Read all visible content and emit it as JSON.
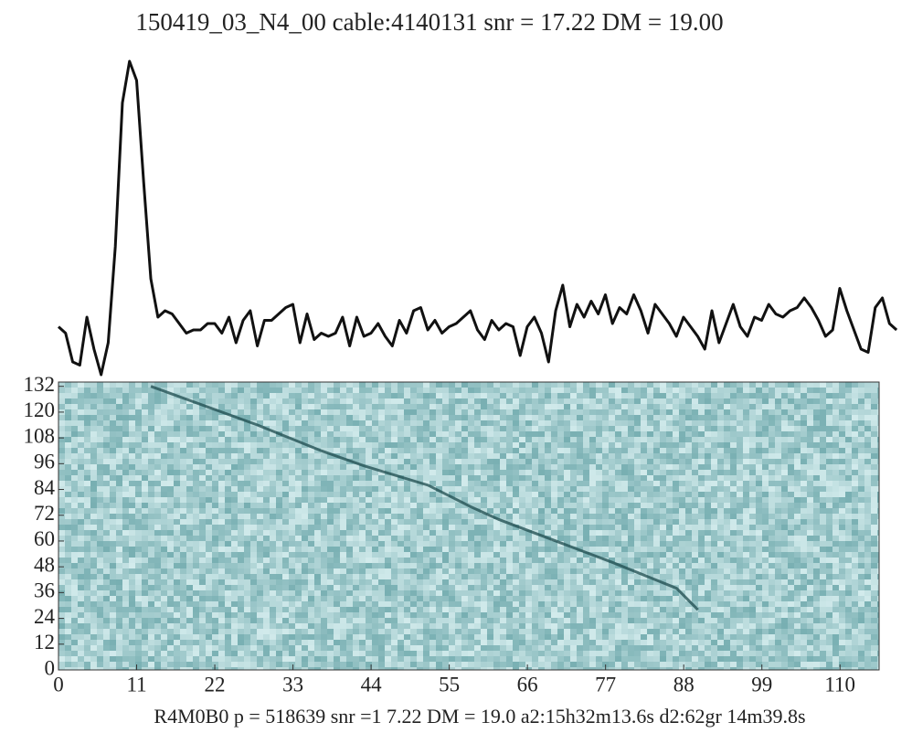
{
  "chart_data": [
    {
      "type": "line",
      "title": "150419_03_N4_00 cable:4140131 snr = 17.22 DM = 19.00",
      "color": "#111111",
      "xlim": [
        0,
        118.5
      ],
      "ylim": [
        0,
        100
      ],
      "x": [
        0,
        1,
        2,
        3,
        4,
        5,
        6,
        7,
        8,
        9,
        10,
        11,
        12,
        13,
        14,
        15,
        16,
        17,
        18,
        19,
        20,
        21,
        22,
        23,
        24,
        25,
        26,
        27,
        28,
        29,
        30,
        31,
        32,
        33,
        34,
        35,
        36,
        37,
        38,
        39,
        40,
        41,
        42,
        43,
        44,
        45,
        46,
        47,
        48,
        49,
        50,
        51,
        52,
        53,
        54,
        55,
        56,
        57,
        58,
        59,
        60,
        61,
        62,
        63,
        64,
        65,
        66,
        67,
        68,
        69,
        70,
        71,
        72,
        73,
        74,
        75,
        76,
        77,
        78,
        79,
        80,
        81,
        82,
        83,
        84,
        85,
        86,
        87,
        88,
        89,
        90,
        91,
        92,
        93,
        94,
        95,
        96,
        97,
        98,
        99,
        100,
        101,
        102,
        103,
        104,
        105,
        106,
        107,
        108,
        109,
        110,
        111,
        112,
        113,
        114,
        115,
        116,
        117,
        118
      ],
      "values": [
        15,
        13,
        4,
        3,
        18,
        8,
        0,
        10,
        40,
        85,
        98,
        92,
        60,
        30,
        18,
        20,
        19,
        16,
        13,
        14,
        14,
        16,
        16,
        13,
        18,
        10,
        17,
        20,
        9,
        17,
        17,
        19,
        21,
        22,
        10,
        19,
        11,
        13,
        12,
        13,
        18,
        9,
        18,
        12,
        13,
        16,
        12,
        9,
        17,
        13,
        20,
        21,
        14,
        17,
        13,
        15,
        16,
        18,
        20,
        14,
        11,
        17,
        14,
        16,
        15,
        6,
        15,
        18,
        13,
        4,
        20,
        28,
        15,
        22,
        18,
        23,
        19,
        25,
        16,
        21,
        19,
        25,
        20,
        13,
        22,
        19,
        16,
        12,
        18,
        15,
        12,
        8,
        20,
        10,
        16,
        22,
        15,
        12,
        18,
        17,
        22,
        19,
        18,
        20,
        21,
        24,
        21,
        17,
        12,
        14,
        27,
        20,
        14,
        8,
        7,
        21,
        24,
        16,
        14
      ]
    },
    {
      "type": "heatmap",
      "xlim": [
        0,
        115.5
      ],
      "ylim": [
        0,
        134
      ],
      "xticks": [
        0,
        11,
        22,
        33,
        44,
        55,
        66,
        77,
        88,
        99,
        110
      ],
      "yticks": [
        0,
        12,
        24,
        36,
        48,
        60,
        72,
        84,
        96,
        108,
        120,
        132
      ],
      "footer": "R4M0B0 p = 518639 snr =1 7.22 DM = 19.0 a2:15h32m13.6s d2:62gr 14m39.8s",
      "dispersion_track": {
        "x": [
          13,
          28,
          37,
          43,
          52,
          58,
          62,
          70,
          78,
          87,
          90
        ],
        "y": [
          132,
          114,
          102,
          95,
          86,
          76,
          70,
          60,
          50,
          38,
          28
        ]
      }
    }
  ]
}
